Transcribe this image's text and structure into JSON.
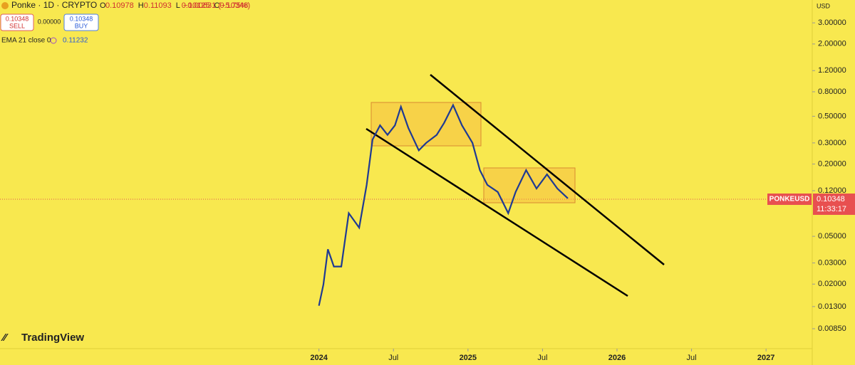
{
  "header": {
    "symbol": "Ponke · 1D · CRYPTO",
    "ohlc": [
      {
        "key": "O",
        "value": "0.10978"
      },
      {
        "key": "H",
        "value": "0.11093"
      },
      {
        "key": "L",
        "value": "0.10125"
      },
      {
        "key": "C",
        "value": "0.10348"
      }
    ],
    "change": "−0.00631 (−5.75%)",
    "sell_price": "0.10348",
    "sell_label": "SELL",
    "spread": "0.00000",
    "buy_price": "0.10348",
    "buy_label": "BUY",
    "indicator": "EMA 21 close 0",
    "indicator_value": "0.11232"
  },
  "price_axis": {
    "currency": "USD",
    "symbol_tag": "PONKEUSD",
    "countdown": "11:33:17"
  },
  "branding": "TradingView",
  "chart_data": {
    "type": "line",
    "color": "#1f3a93",
    "log_scale": true,
    "x": [
      2024.0,
      2024.03,
      2024.06,
      2024.1,
      2024.15,
      2024.2,
      2024.27,
      2024.32,
      2024.36,
      2024.41,
      2024.46,
      2024.51,
      2024.55,
      2024.6,
      2024.67,
      2024.72,
      2024.79,
      2024.84,
      2024.9,
      2024.96,
      2025.03,
      2025.08,
      2025.13,
      2025.2,
      2025.27,
      2025.32,
      2025.39,
      2025.46,
      2025.53,
      2025.6,
      2025.67
    ],
    "values": [
      0.0132,
      0.0198,
      0.039,
      0.028,
      0.028,
      0.078,
      0.059,
      0.134,
      0.32,
      0.42,
      0.35,
      0.42,
      0.6,
      0.4,
      0.26,
      0.3,
      0.35,
      0.44,
      0.62,
      0.42,
      0.3,
      0.178,
      0.134,
      0.117,
      0.078,
      0.117,
      0.178,
      0.125,
      0.164,
      0.125,
      0.10348
    ],
    "xlim": [
      2021.86,
      2027.31
    ],
    "xticks": [
      2024,
      {
        "value": 2024.5,
        "label": "Jul"
      },
      2025,
      {
        "value": 2025.5,
        "label": "Jul"
      },
      2026,
      {
        "value": 2026.5,
        "label": "Jul"
      },
      2027
    ],
    "ylim": [
      0.0058,
      4.65
    ],
    "yticks": [
      {
        "value": 3,
        "label": "3.00000"
      },
      {
        "value": 2,
        "label": "2.00000"
      },
      {
        "value": 1.2,
        "label": "1.20000"
      },
      {
        "value": 0.8,
        "label": "0.80000"
      },
      {
        "value": 0.5,
        "label": "0.50000"
      },
      {
        "value": 0.3,
        "label": "0.30000"
      },
      {
        "value": 0.2,
        "label": "0.20000"
      },
      {
        "value": 0.12,
        "label": "0.12000"
      },
      {
        "value": 0.05,
        "label": "0.05000"
      },
      {
        "value": 0.03,
        "label": "0.03000"
      },
      {
        "value": 0.02,
        "label": "0.02000"
      },
      {
        "value": 0.013,
        "label": "0.01300"
      },
      {
        "value": 0.0085,
        "label": "0.00850"
      }
    ]
  }
}
